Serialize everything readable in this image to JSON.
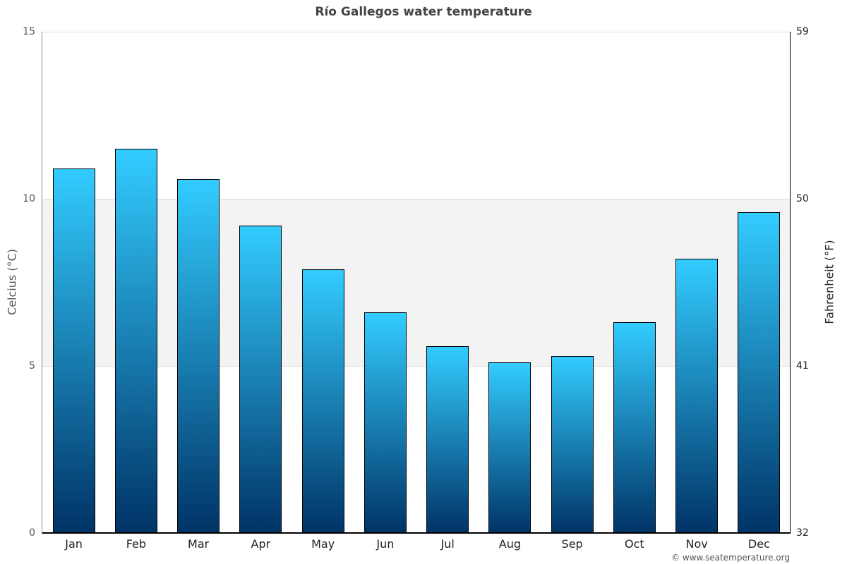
{
  "chart_data": {
    "type": "bar",
    "title": "Río Gallegos water temperature",
    "xlabel": "",
    "ylabel": "Celcius (°C)",
    "ylabel_right": "Fahrenheit (°F)",
    "categories": [
      "Jan",
      "Feb",
      "Mar",
      "Apr",
      "May",
      "Jun",
      "Jul",
      "Aug",
      "Sep",
      "Oct",
      "Nov",
      "Dec"
    ],
    "values": [
      10.9,
      11.5,
      10.6,
      9.2,
      7.9,
      6.6,
      5.6,
      5.1,
      5.3,
      6.3,
      8.2,
      9.6
    ],
    "ylim": [
      0,
      15
    ],
    "yticks": [
      0,
      5,
      10,
      15
    ],
    "yticks_right": [
      32,
      41,
      50,
      59
    ],
    "ylim_right": [
      32,
      59
    ],
    "grid": true,
    "highlight_band": [
      5,
      10
    ],
    "legend": null,
    "colors": {
      "bar_top": "#33ccff",
      "bar_bottom": "#003366",
      "band": "#f3f3f3",
      "grid": "#dddddd"
    }
  },
  "credit": "© www.seatemperature.org"
}
